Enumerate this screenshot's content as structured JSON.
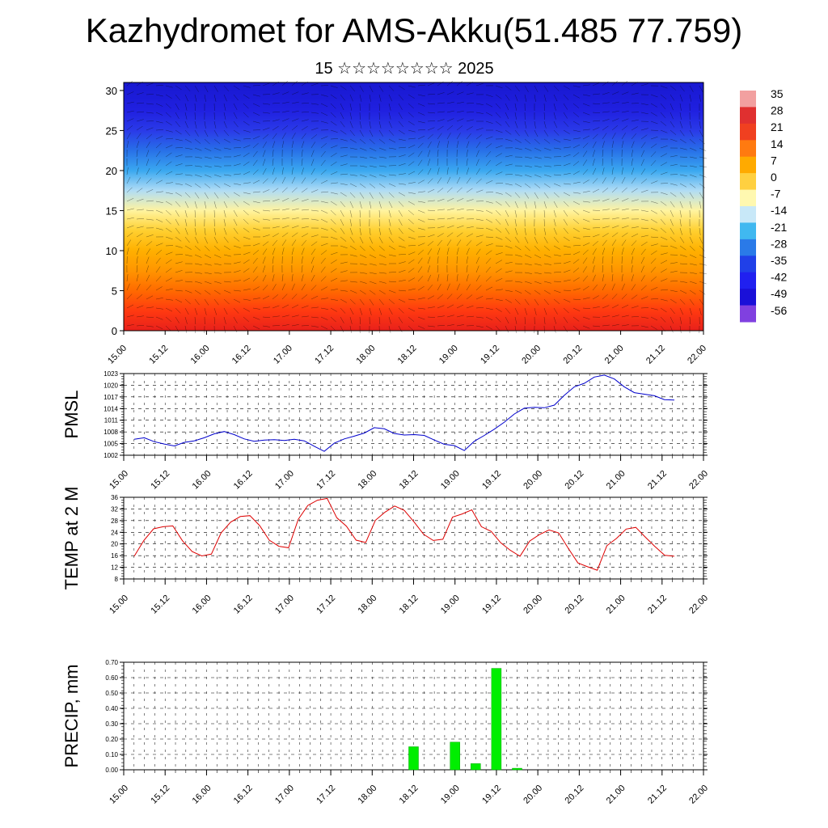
{
  "header": {
    "title": "Kazhydromet for AMS-Akku(51.485 77.759)",
    "subtitle": "15 ☆☆☆☆☆☆☆☆ 2025"
  },
  "time_ticks": [
    "15.00",
    "15.12",
    "16.00",
    "16.12",
    "17.00",
    "17.12",
    "18.00",
    "18.12",
    "19.00",
    "19.12",
    "20.00",
    "20.12",
    "21.00",
    "21.12",
    "22.00"
  ],
  "chart_data": [
    {
      "type": "heatmap",
      "title": "",
      "xlabel": "",
      "ylabel": "",
      "y_ticks": [
        0,
        5,
        10,
        15,
        20,
        25,
        30
      ],
      "ylim": [
        0,
        31
      ],
      "colorbar": {
        "labels": [
          "35",
          "28",
          "21",
          "14",
          "7",
          "0",
          "-7",
          "-14",
          "-21",
          "-28",
          "-35",
          "-42",
          "-49",
          "-56"
        ],
        "colors": [
          "#f2a0a0",
          "#e03030",
          "#f04020",
          "#ff7a10",
          "#ffaa00",
          "#ffd040",
          "#fff8b0",
          "#c8e8f8",
          "#40b8f0",
          "#2a7ae8",
          "#2040e8",
          "#2020f0",
          "#1a10d8",
          "#8040e0"
        ]
      },
      "levels_km": [
        0,
        2.5,
        5,
        7.5,
        10,
        12.5,
        15,
        17.5,
        20,
        22.5,
        25,
        27.5,
        31
      ],
      "colors_by_level": [
        "#e8201c",
        "#ff3a10",
        "#ff6a00",
        "#ff9500",
        "#ffb000",
        "#ffd030",
        "#fff4a0",
        "#b0dcf5",
        "#3aa8f0",
        "#2870e8",
        "#2a3ae8",
        "#2020e0",
        "#1818d0"
      ]
    },
    {
      "type": "line",
      "ylabel": "PMSL",
      "ylim": [
        1002,
        1023
      ],
      "y_ticks": [
        1002,
        1005,
        1008,
        1011,
        1014,
        1017,
        1020,
        1023
      ],
      "series": [
        {
          "color": "#0000cc",
          "values": [
            1006.1,
            1006.5,
            1005.5,
            1004.9,
            1004.4,
            1005.3,
            1005.7,
            1006.5,
            1007.5,
            1008.1,
            1007.3,
            1006.2,
            1005.6,
            1005.9,
            1006.0,
            1005.8,
            1006.1,
            1005.7,
            1004.3,
            1003.0,
            1005.1,
            1006.2,
            1006.9,
            1007.7,
            1009.1,
            1008.8,
            1007.6,
            1007.2,
            1007.3,
            1007.1,
            1005.9,
            1004.8,
            1004.5,
            1003.2,
            1005.6,
            1007.1,
            1008.7,
            1010.5,
            1012.6,
            1014.1,
            1014.3,
            1014.2,
            1014.9,
            1017.4,
            1019.6,
            1020.5,
            1022.1,
            1022.6,
            1021.6,
            1019.6,
            1018.1,
            1017.7,
            1017.3,
            1016.3,
            1016.2
          ]
        }
      ],
      "n_points": 55
    },
    {
      "type": "line",
      "ylabel": "TEMP at 2 M",
      "ylim": [
        8,
        36
      ],
      "y_ticks": [
        8,
        12,
        16,
        20,
        24,
        28,
        32,
        36
      ],
      "series": [
        {
          "color": "#dd0000",
          "values": [
            15.8,
            21.2,
            25.2,
            25.9,
            26.2,
            21.1,
            17.4,
            15.9,
            16.5,
            23.8,
            27.5,
            29.4,
            29.7,
            26.3,
            21.3,
            19.2,
            18.7,
            28.4,
            33.2,
            35.0,
            35.6,
            29.0,
            26.1,
            21.3,
            20.5,
            28.1,
            30.9,
            33.0,
            31.5,
            27.6,
            23.3,
            21.2,
            21.6,
            29.2,
            30.3,
            31.7,
            25.9,
            24.3,
            20.4,
            17.8,
            15.8,
            21.0,
            23.2,
            24.8,
            23.8,
            18.5,
            13.5,
            12.2,
            11.0,
            19.4,
            21.9,
            25.1,
            25.7,
            22.3,
            19.1,
            16.1,
            15.8
          ]
        }
      ]
    },
    {
      "type": "bar",
      "ylabel": "PRECIP, mm",
      "ylim": [
        0,
        0.7
      ],
      "y_ticks": [
        "0.00",
        "0.10",
        "0.20",
        "0.30",
        "0.40",
        "0.50",
        "0.60",
        "0.70"
      ],
      "bar_color": "#00ee00",
      "bars": [
        {
          "t": 3.5,
          "value": 0.15
        },
        {
          "t": 4.0,
          "value": 0.18
        },
        {
          "t": 4.25,
          "value": 0.04
        },
        {
          "t": 4.5,
          "value": 0.66
        },
        {
          "t": 4.75,
          "value": 0.01
        }
      ]
    }
  ]
}
